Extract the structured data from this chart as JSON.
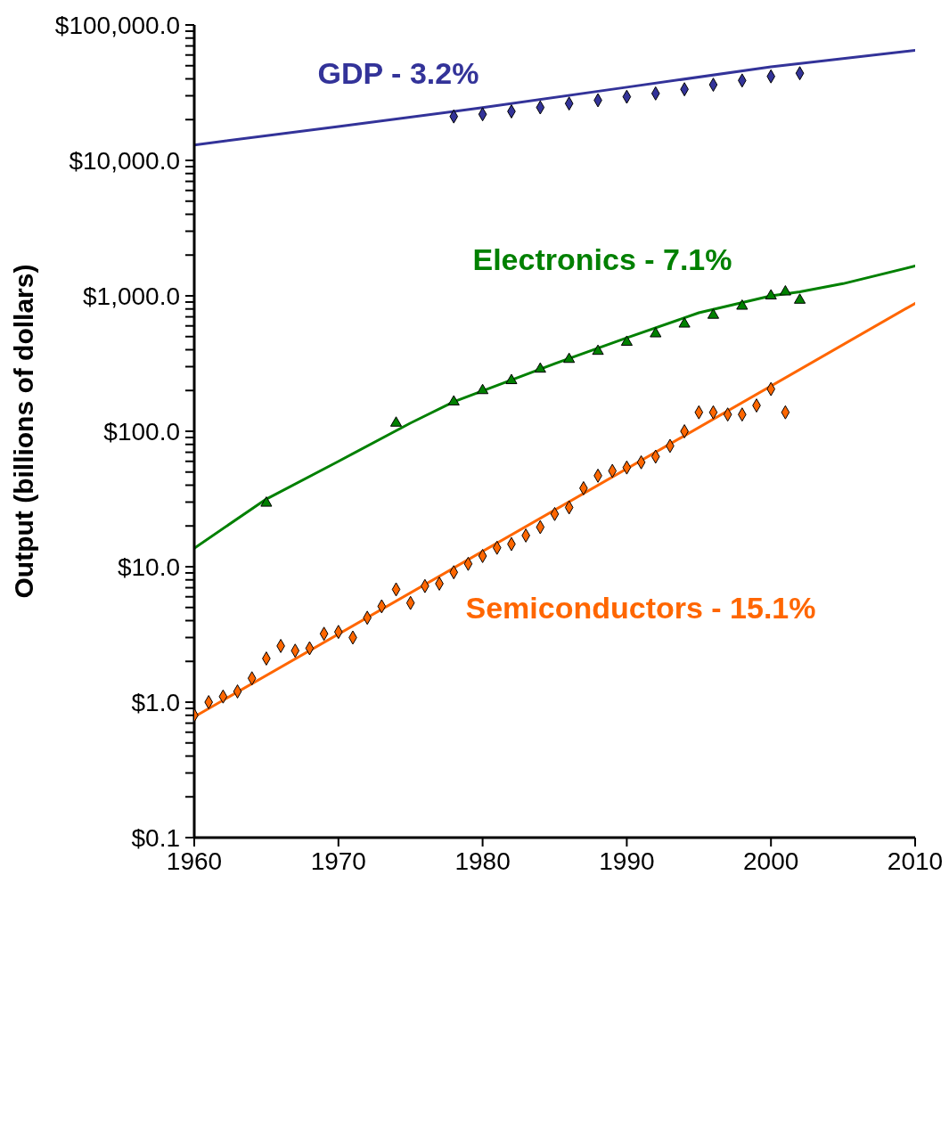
{
  "chart_data": {
    "type": "scatter",
    "ylabel": "Output (billions of dollars)",
    "log": "y",
    "grid": false,
    "legend": false,
    "xlim": [
      1960,
      2010
    ],
    "xticks": [
      1960,
      1970,
      1980,
      1990,
      2000,
      2010
    ],
    "ylim": [
      0.1,
      100000
    ],
    "yticks": [
      {
        "value": 0.1,
        "label": "$0.1"
      },
      {
        "value": 0.2,
        "label": null
      },
      {
        "value": 0.3,
        "label": null
      },
      {
        "value": 0.4,
        "label": null
      },
      {
        "value": 0.5,
        "label": null
      },
      {
        "value": 0.6,
        "label": null
      },
      {
        "value": 0.7,
        "label": null
      },
      {
        "value": 0.8,
        "label": null
      },
      {
        "value": 0.9,
        "label": null
      },
      {
        "value": 1,
        "label": "$1.0"
      },
      {
        "value": 2,
        "label": null
      },
      {
        "value": 3,
        "label": null
      },
      {
        "value": 4,
        "label": null
      },
      {
        "value": 5,
        "label": null
      },
      {
        "value": 6,
        "label": null
      },
      {
        "value": 7,
        "label": null
      },
      {
        "value": 8,
        "label": null
      },
      {
        "value": 9,
        "label": null
      },
      {
        "value": 10,
        "label": "$10.0"
      },
      {
        "value": 20,
        "label": null
      },
      {
        "value": 30,
        "label": null
      },
      {
        "value": 40,
        "label": null
      },
      {
        "value": 50,
        "label": null
      },
      {
        "value": 60,
        "label": null
      },
      {
        "value": 70,
        "label": null
      },
      {
        "value": 80,
        "label": null
      },
      {
        "value": 90,
        "label": null
      },
      {
        "value": 100,
        "label": "$100.0"
      },
      {
        "value": 200,
        "label": null
      },
      {
        "value": 300,
        "label": null
      },
      {
        "value": 400,
        "label": null
      },
      {
        "value": 500,
        "label": null
      },
      {
        "value": 600,
        "label": null
      },
      {
        "value": 700,
        "label": null
      },
      {
        "value": 800,
        "label": null
      },
      {
        "value": 900,
        "label": null
      },
      {
        "value": 1000,
        "label": "$1,000.0"
      },
      {
        "value": 2000,
        "label": null
      },
      {
        "value": 3000,
        "label": null
      },
      {
        "value": 4000,
        "label": null
      },
      {
        "value": 5000,
        "label": null
      },
      {
        "value": 6000,
        "label": null
      },
      {
        "value": 7000,
        "label": null
      },
      {
        "value": 8000,
        "label": null
      },
      {
        "value": 9000,
        "label": null
      },
      {
        "value": 10000,
        "label": "$10,000.0"
      },
      {
        "value": 20000,
        "label": null
      },
      {
        "value": 30000,
        "label": null
      },
      {
        "value": 40000,
        "label": null
      },
      {
        "value": 50000,
        "label": null
      },
      {
        "value": 60000,
        "label": null
      },
      {
        "value": 70000,
        "label": null
      },
      {
        "value": 80000,
        "label": null
      },
      {
        "value": 90000,
        "label": null
      },
      {
        "value": 100000,
        "label": "$100,000.0"
      }
    ],
    "series": [
      {
        "type": "line",
        "color": "#333399",
        "marker": "none",
        "x": [
          1960,
          1970,
          1980,
          1990,
          2000,
          2010
        ],
        "values": [
          13000,
          17800,
          24500,
          34700,
          49000,
          65000
        ]
      },
      {
        "type": "line",
        "color": "#008000",
        "marker": "none",
        "x": [
          1960,
          1965,
          1970,
          1975,
          1978,
          1985,
          1990,
          1995,
          2000,
          2002,
          2005,
          2010
        ],
        "values": [
          13.7,
          31.6,
          60,
          115,
          165,
          316,
          490,
          750,
          1000,
          1070,
          1230,
          1660
        ]
      },
      {
        "type": "line",
        "color": "#ff6600",
        "marker": "none",
        "x": [
          1960,
          2010
        ],
        "values": [
          0.78,
          880
        ]
      },
      {
        "name": "GDP - 3.2%",
        "color": "#333399",
        "marker": "diamond",
        "x": [
          1978,
          1980,
          1982,
          1984,
          1986,
          1988,
          1990,
          1992,
          1994,
          1996,
          1998,
          2000,
          2002
        ],
        "values": [
          21100,
          21900,
          23000,
          24600,
          26300,
          27800,
          29500,
          31200,
          33500,
          36200,
          38900,
          41700,
          44000
        ]
      },
      {
        "name": "Electronics - 7.1%",
        "color": "#008000",
        "marker": "triangle",
        "x": [
          1965,
          1974,
          1978,
          1980,
          1982,
          1984,
          1986,
          1988,
          1990,
          1992,
          1994,
          1996,
          1998,
          2000,
          2001,
          2002
        ],
        "values": [
          29.5,
          115,
          165,
          200,
          237,
          288,
          340,
          390,
          455,
          525,
          620,
          720,
          840,
          1000,
          1070,
          930
        ]
      },
      {
        "name": "Semiconductors - 15.1%",
        "color": "#ff6600",
        "marker": "diamond",
        "x": [
          1960,
          1961,
          1962,
          1963,
          1964,
          1965,
          1966,
          1967,
          1968,
          1969,
          1970,
          1971,
          1972,
          1973,
          1974,
          1975,
          1976,
          1977,
          1978,
          1979,
          1980,
          1981,
          1982,
          1983,
          1984,
          1985,
          1986,
          1987,
          1988,
          1989,
          1990,
          1991,
          1992,
          1993,
          1994,
          1995,
          1996,
          1997,
          1998,
          1999,
          2000,
          2001
        ],
        "values": [
          0.8,
          1.0,
          1.1,
          1.2,
          1.5,
          2.1,
          2.6,
          2.4,
          2.5,
          3.2,
          3.3,
          3.0,
          4.2,
          5.1,
          6.8,
          5.4,
          7.2,
          7.5,
          9.1,
          10.5,
          12,
          13.8,
          14.7,
          17,
          19.6,
          24.5,
          27.4,
          38,
          47,
          51,
          54,
          59,
          65,
          78,
          100,
          138,
          138,
          133,
          133,
          155,
          205,
          138
        ]
      }
    ]
  }
}
